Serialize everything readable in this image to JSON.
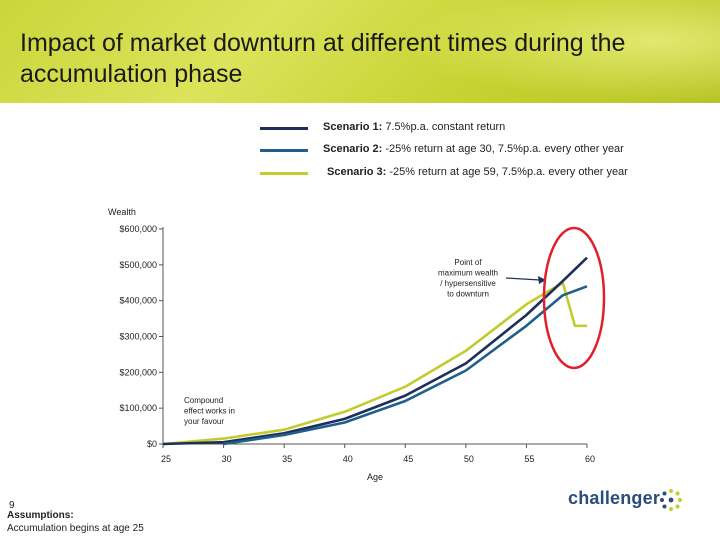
{
  "title": "Impact of market downturn at different times during the accumulation phase",
  "legend": [
    {
      "label_bold": "Scenario 1:",
      "label_rest": " 7.5%p.a. constant return",
      "color": "#1f2f5c"
    },
    {
      "label_bold": "Scenario 2:",
      "label_rest": " -25% return at age 30, 7.5%p.a. every other year",
      "color": "#1f5f8a"
    },
    {
      "label_bold": "Scenario 3:",
      "label_rest": " -25% return at age 59, 7.5%p.a. every other year",
      "color": "#c2cc2e"
    }
  ],
  "annotations": {
    "point_max": [
      "Point of",
      "maximum wealth",
      "/ hypersensitive",
      "to downturn"
    ],
    "compound": [
      "Compound",
      "effect works in",
      "your favour"
    ]
  },
  "page_number": "9",
  "assumptions_title": "Assumptions:",
  "assumptions_text": "Accumulation begins at age 25",
  "logo_text": "challenger",
  "chart_data": {
    "type": "line",
    "ylabel": "Wealth",
    "xlabel": "Age",
    "x_ticks": [
      "25",
      "30",
      "35",
      "40",
      "45",
      "50",
      "55",
      "60"
    ],
    "y_ticks": [
      "$0",
      "$100,000",
      "$200,000",
      "$300,000",
      "$400,000",
      "$500,000",
      "$600,000"
    ],
    "xlim": [
      25,
      60
    ],
    "ylim": [
      0,
      600000
    ],
    "series": [
      {
        "name": "Scenario 1",
        "color": "#1f2f5c",
        "x": [
          25,
          30,
          35,
          40,
          45,
          50,
          55,
          58,
          60
        ],
        "y": [
          0,
          5000,
          30000,
          70000,
          135000,
          225000,
          360000,
          455000,
          520000
        ]
      },
      {
        "name": "Scenario 2",
        "color": "#1f5f8a",
        "x": [
          30,
          35,
          40,
          45,
          50,
          55,
          58,
          60
        ],
        "y": [
          0,
          25000,
          60000,
          120000,
          205000,
          330000,
          415000,
          440000
        ]
      },
      {
        "name": "Scenario 3",
        "color": "#c2cc2e",
        "x": [
          25,
          30,
          35,
          40,
          45,
          50,
          55,
          58,
          59,
          60
        ],
        "y": [
          0,
          15000,
          40000,
          90000,
          160000,
          260000,
          390000,
          450000,
          330000,
          330000
        ]
      }
    ],
    "grid": false
  }
}
